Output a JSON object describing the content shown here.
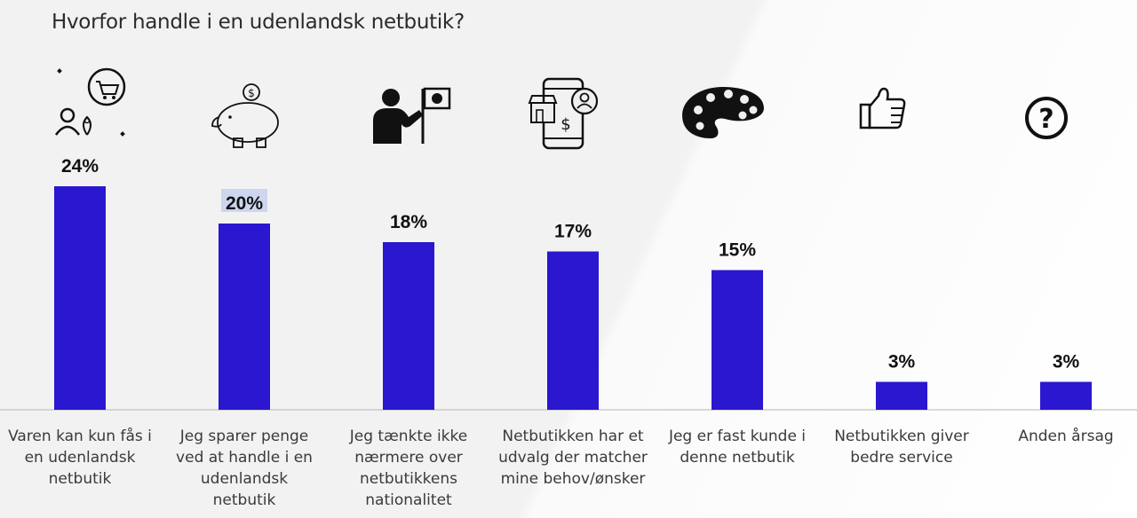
{
  "title": "Hvorfor handle i en udenlandsk netbutik?",
  "colors": {
    "bar": "#2a17cf",
    "highlight": "#cdd6ee",
    "text": "#2b2b2b"
  },
  "chart_data": {
    "type": "bar",
    "title": "Hvorfor handle i en udenlandsk netbutik?",
    "categories": [
      [
        "Varen kan kun fås i",
        "en udenlandsk",
        "netbutik"
      ],
      [
        "Jeg sparer penge",
        "ved at handle i en",
        "udenlandsk",
        "netbutik"
      ],
      [
        "Jeg tænkte ikke",
        "nærmere over",
        "netbutikkens",
        "nationalitet"
      ],
      [
        "Netbutikken har et",
        "udvalg der matcher",
        "mine behov/ønsker"
      ],
      [
        "Jeg er fast kunde i",
        "denne netbutik"
      ],
      [
        "Netbutikken giver",
        "bedre service"
      ],
      [
        "Anden årsag"
      ]
    ],
    "values": [
      24,
      20,
      18,
      17,
      15,
      3,
      3
    ],
    "value_labels": [
      "24%",
      "20%",
      "18%",
      "17%",
      "15%",
      "3%",
      "3%"
    ],
    "icons": [
      "shopping-location-icon",
      "piggy-bank-icon",
      "person-flag-icon",
      "mobile-store-icon",
      "palette-icon",
      "thumbs-up-icon",
      "question-icon"
    ],
    "xlabel": "",
    "ylabel": "",
    "grid": false,
    "legend": "none"
  }
}
